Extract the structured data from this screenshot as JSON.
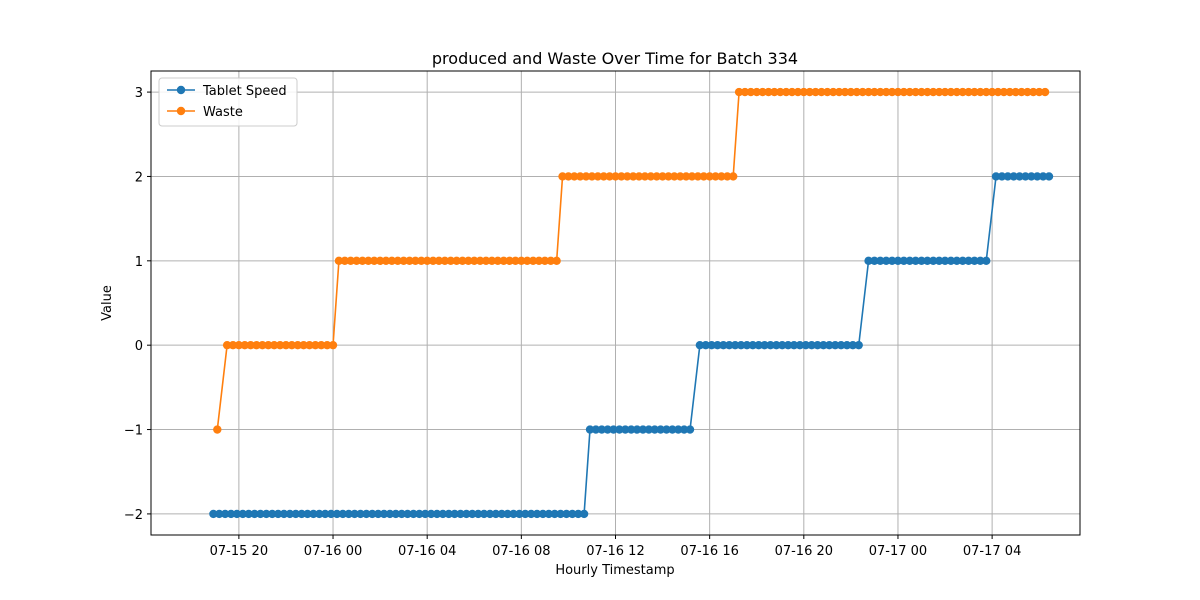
{
  "chart_data": {
    "type": "line",
    "title": "produced and Waste Over Time for Batch 334",
    "xlabel": "Hourly Timestamp",
    "ylabel": "Value",
    "x_type": "datetime",
    "xlim": [
      "2024-07-15 16:16",
      "2024-07-17 07:44"
    ],
    "ylim": [
      -2.25,
      3.25
    ],
    "x_ticks": [
      {
        "value": "2024-07-15 20:00",
        "label": "07-15 20"
      },
      {
        "value": "2024-07-16 00:00",
        "label": "07-16 00"
      },
      {
        "value": "2024-07-16 04:00",
        "label": "07-16 04"
      },
      {
        "value": "2024-07-16 08:00",
        "label": "07-16 08"
      },
      {
        "value": "2024-07-16 12:00",
        "label": "07-16 12"
      },
      {
        "value": "2024-07-16 16:00",
        "label": "07-16 16"
      },
      {
        "value": "2024-07-16 20:00",
        "label": "07-16 20"
      },
      {
        "value": "2024-07-17 00:00",
        "label": "07-17 00"
      },
      {
        "value": "2024-07-17 04:00",
        "label": "07-17 04"
      }
    ],
    "y_ticks": [
      {
        "value": -2,
        "label": "−2"
      },
      {
        "value": -1,
        "label": "−1"
      },
      {
        "value": 0,
        "label": "0"
      },
      {
        "value": 1,
        "label": "1"
      },
      {
        "value": 2,
        "label": "2"
      },
      {
        "value": 3,
        "label": "3"
      }
    ],
    "grid": true,
    "legend_position": "top-left",
    "series": [
      {
        "name": "Tablet Speed",
        "color": "#1f77b4",
        "marker": "circle",
        "segments": [
          {
            "start": "2024-07-15 18:55",
            "end": "2024-07-16 10:40",
            "value": -2
          },
          {
            "start": "2024-07-16 10:55",
            "end": "2024-07-16 15:20",
            "value": -1
          },
          {
            "start": "2024-07-16 15:35",
            "end": "2024-07-16 22:30",
            "value": 0
          },
          {
            "start": "2024-07-16 22:45",
            "end": "2024-07-17 03:55",
            "value": 1
          },
          {
            "start": "2024-07-17 04:10",
            "end": "2024-07-17 06:25",
            "value": 2
          }
        ]
      },
      {
        "name": "Waste",
        "color": "#ff7f0e",
        "marker": "circle",
        "segments": [
          {
            "start": "2024-07-15 19:05",
            "end": "2024-07-15 19:15",
            "value": -1
          },
          {
            "start": "2024-07-15 19:30",
            "end": "2024-07-16 00:05",
            "value": 0
          },
          {
            "start": "2024-07-16 00:15",
            "end": "2024-07-16 09:30",
            "value": 1
          },
          {
            "start": "2024-07-16 09:45",
            "end": "2024-07-16 17:05",
            "value": 2
          },
          {
            "start": "2024-07-16 17:15",
            "end": "2024-07-17 06:25",
            "value": 3
          }
        ]
      }
    ]
  }
}
